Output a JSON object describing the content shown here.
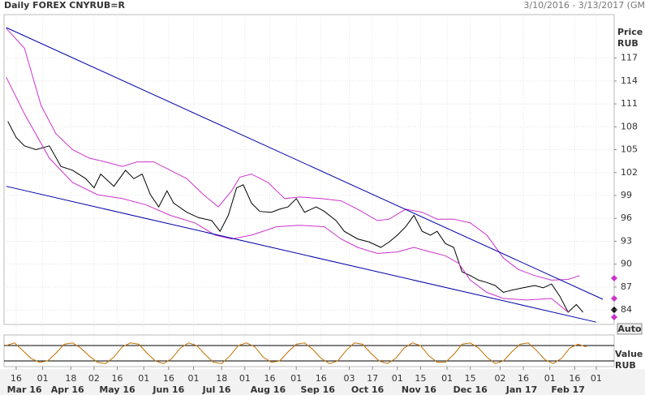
{
  "chart_data": {
    "type": "line",
    "title": "Daily FOREX CNYRUB=R",
    "date_range": "3/10/2016 - 3/13/2017 (GM",
    "y_axis_title": "Price",
    "y_axis_unit": "RUB",
    "scale_button": "Auto",
    "lower_axis_title": "Value",
    "lower_axis_unit": "RUB",
    "xlim": [
      -1.3,
      366.8
    ],
    "ylim": [
      82.1,
      122.7
    ],
    "yticks": [
      84,
      87,
      90,
      93,
      96,
      99,
      102,
      105,
      108,
      111,
      114,
      117
    ],
    "xticks": [
      {
        "value": 6,
        "label": "16"
      },
      {
        "value": 22,
        "label": "01"
      },
      {
        "value": 39,
        "label": "18"
      },
      {
        "value": 53,
        "label": "02"
      },
      {
        "value": 67,
        "label": "16"
      },
      {
        "value": 83,
        "label": "01"
      },
      {
        "value": 98,
        "label": "16"
      },
      {
        "value": 113,
        "label": "01"
      },
      {
        "value": 130,
        "label": "18"
      },
      {
        "value": 144,
        "label": "01"
      },
      {
        "value": 159,
        "label": "16"
      },
      {
        "value": 175,
        "label": "01"
      },
      {
        "value": 190,
        "label": "16"
      },
      {
        "value": 207,
        "label": "03"
      },
      {
        "value": 221,
        "label": "17"
      },
      {
        "value": 236,
        "label": "01"
      },
      {
        "value": 250,
        "label": "15"
      },
      {
        "value": 266,
        "label": "01"
      },
      {
        "value": 280,
        "label": "15"
      },
      {
        "value": 298,
        "label": "02"
      },
      {
        "value": 312,
        "label": "16"
      },
      {
        "value": 328,
        "label": "01"
      },
      {
        "value": 343,
        "label": "16"
      },
      {
        "value": 356,
        "label": "01"
      }
    ],
    "month_labels": [
      {
        "value": 11,
        "label": "Mar 16"
      },
      {
        "value": 37,
        "label": "Apr 16"
      },
      {
        "value": 67,
        "label": "May 16"
      },
      {
        "value": 98,
        "label": "Jun 16"
      },
      {
        "value": 127,
        "label": "Jul 16"
      },
      {
        "value": 158,
        "label": "Aug 16"
      },
      {
        "value": 188,
        "label": "Sep 16"
      },
      {
        "value": 218,
        "label": "Oct 16"
      },
      {
        "value": 249,
        "label": "Nov 16"
      },
      {
        "value": 280,
        "label": "Dec 16"
      },
      {
        "value": 311,
        "label": "Jan 17"
      },
      {
        "value": 339,
        "label": "Feb 17"
      }
    ],
    "grid": true,
    "series": [
      {
        "color": "#000000",
        "x": [
          1,
          6,
          11,
          18,
          26,
          33,
          40,
          48,
          53,
          57,
          65,
          72,
          77,
          82,
          87,
          92,
          97,
          101,
          109,
          116,
          124,
          129,
          134,
          139,
          143,
          148,
          153,
          160,
          165,
          170,
          175,
          180,
          187,
          192,
          199,
          204,
          212,
          219,
          226,
          231,
          236,
          241,
          246,
          251,
          256,
          260,
          265,
          270,
          275,
          280,
          285,
          290,
          295,
          300,
          305,
          312,
          319,
          324,
          329,
          334,
          339,
          344,
          348
        ],
        "values": [
          108.7,
          106.6,
          105.5,
          105,
          105.5,
          102.8,
          102.3,
          101.2,
          100,
          101.8,
          100.2,
          102.3,
          101.2,
          101.8,
          99.1,
          97.5,
          99.6,
          98,
          96.8,
          96.1,
          95.7,
          94.3,
          96.4,
          100,
          100.4,
          98,
          96.9,
          96.8,
          97.2,
          97.5,
          98.6,
          96.8,
          97.5,
          96.9,
          95.7,
          94.3,
          93.3,
          92.9,
          92.2,
          92.9,
          93.8,
          94.9,
          96.4,
          94.3,
          93.8,
          94.3,
          92.7,
          92.2,
          89,
          88.5,
          87.9,
          87.6,
          87.2,
          86.3,
          86.6,
          86.9,
          87.2,
          86.9,
          87.4,
          85.8,
          83.7,
          84.7,
          83.7
        ]
      },
      {
        "color": "#cc33cc",
        "x": [
          0,
          11,
          21,
          30,
          40,
          50,
          60,
          70,
          79,
          89,
          99,
          109,
          119,
          128,
          136,
          141,
          148,
          158,
          168,
          177,
          190,
          202,
          212,
          224,
          231,
          241,
          251,
          260,
          270,
          280,
          290,
          300,
          309,
          319,
          329,
          339,
          346
        ],
        "values": [
          120.9,
          118.3,
          110.8,
          107.1,
          105,
          103.9,
          103.4,
          102.8,
          103.4,
          103.4,
          102.3,
          101.2,
          99.1,
          97.5,
          99.6,
          101.4,
          101.8,
          100.7,
          98.6,
          98.8,
          98.6,
          98.3,
          97.2,
          95.7,
          95.9,
          97.2,
          96.8,
          95.9,
          95.9,
          95.4,
          93.8,
          90.8,
          89.3,
          88.5,
          87.9,
          88,
          88.5
        ]
      },
      {
        "color": "#cc33cc",
        "x": [
          0,
          11,
          26,
          40,
          55,
          70,
          84,
          99,
          114,
          126,
          136,
          148,
          163,
          177,
          192,
          202,
          212,
          224,
          236,
          246,
          256,
          265,
          273,
          280,
          290,
          300,
          314,
          329,
          339
        ],
        "values": [
          114.5,
          109.7,
          103.9,
          100.7,
          99.1,
          98.6,
          97.8,
          96.4,
          95.4,
          93.8,
          93.3,
          93.8,
          94.9,
          95.1,
          94.9,
          93.3,
          92.2,
          91.4,
          91.6,
          92.2,
          91.6,
          91.1,
          90.1,
          87.9,
          86.3,
          85.5,
          85.3,
          85.5,
          83.7
        ]
      },
      {
        "color": "#0000aa",
        "x": [
          0,
          360
        ],
        "values": [
          121,
          85.4
        ]
      },
      {
        "color": "#0000aa",
        "x": [
          0,
          356
        ],
        "values": [
          100.2,
          82.4
        ]
      }
    ],
    "oscillator": {
      "color": "#c07000",
      "ylim": [
        -2,
        121
      ],
      "levels": [
        20,
        80
      ],
      "x": [
        0,
        5,
        10,
        15,
        20,
        25,
        30,
        35,
        40,
        45,
        50,
        55,
        60,
        65,
        70,
        75,
        80,
        85,
        90,
        95,
        100,
        105,
        110,
        115,
        120,
        125,
        130,
        135,
        140,
        145,
        150,
        155,
        160,
        165,
        170,
        175,
        180,
        185,
        190,
        195,
        200,
        205,
        210,
        215,
        220,
        225,
        230,
        235,
        240,
        245,
        250,
        255,
        260,
        265,
        270,
        275,
        280,
        285,
        290,
        295,
        300,
        305,
        310,
        315,
        320,
        325,
        330,
        335,
        340,
        345,
        350
      ],
      "values": [
        80,
        90,
        60,
        30,
        15,
        20,
        50,
        85,
        90,
        70,
        40,
        15,
        10,
        35,
        75,
        90,
        85,
        50,
        20,
        10,
        30,
        70,
        90,
        80,
        45,
        15,
        10,
        40,
        80,
        90,
        75,
        35,
        15,
        20,
        55,
        85,
        90,
        65,
        30,
        10,
        20,
        60,
        90,
        85,
        50,
        20,
        10,
        30,
        70,
        90,
        80,
        40,
        15,
        15,
        45,
        85,
        90,
        70,
        35,
        10,
        20,
        55,
        85,
        90,
        60,
        25,
        10,
        30,
        70,
        85,
        75
      ]
    }
  }
}
